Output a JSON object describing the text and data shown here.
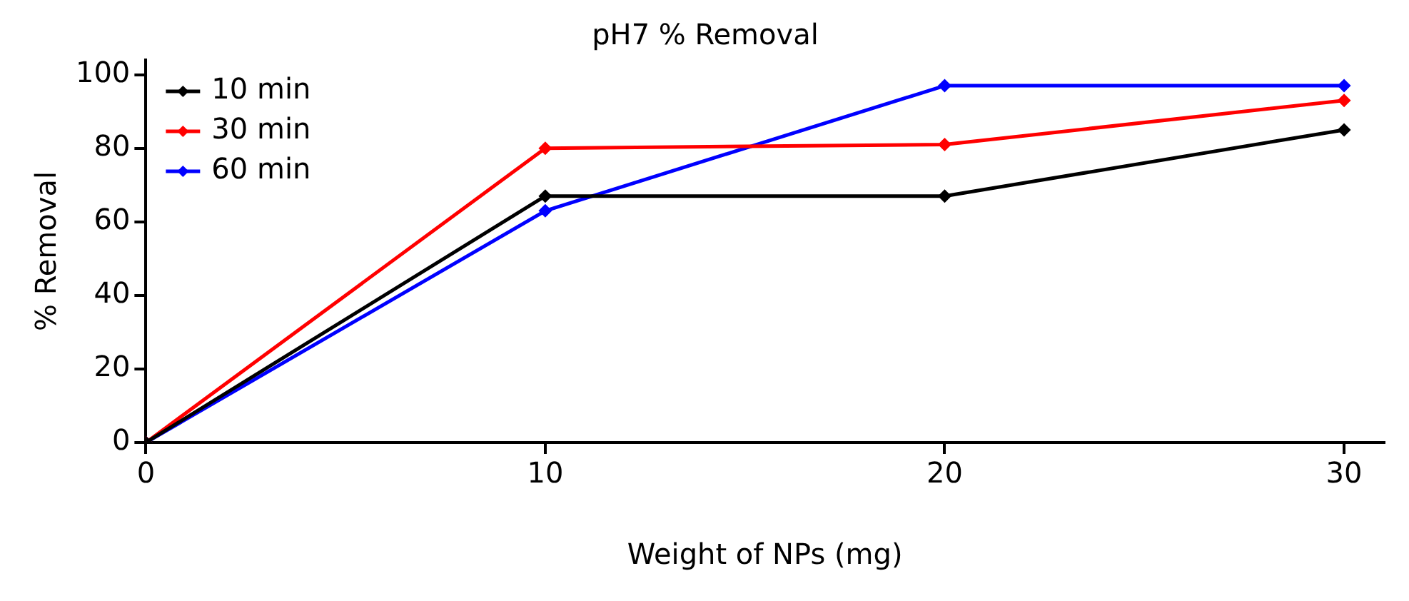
{
  "chart_data": {
    "type": "line",
    "title": "pH7 % Removal",
    "xlabel": "Weight of NPs (mg)",
    "ylabel": "% Removal",
    "x": [
      0,
      10,
      20,
      30
    ],
    "series": [
      {
        "name": "10 min",
        "color": "#000000",
        "values": [
          0,
          67,
          67,
          85
        ]
      },
      {
        "name": "30 min",
        "color": "#ff0000",
        "values": [
          0,
          80,
          81,
          93
        ]
      },
      {
        "name": "60 min",
        "color": "#0000ff",
        "values": [
          0,
          63,
          97,
          97
        ]
      }
    ],
    "xlim": [
      0,
      31
    ],
    "xticks": [
      0,
      10,
      20,
      30
    ],
    "ylim": [
      0,
      104
    ],
    "yticks": [
      0,
      20,
      40,
      60,
      80,
      100
    ],
    "grid": false,
    "legend": "top left",
    "marker": "diamond",
    "line_style": "solid"
  }
}
